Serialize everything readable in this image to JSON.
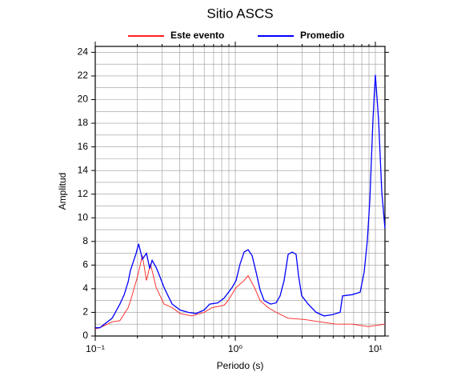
{
  "chart_data": {
    "type": "line",
    "title": "Sitio ASCS",
    "xlabel": "Periodo (s)",
    "ylabel": "Amplitud",
    "xscale": "log",
    "xlim": [
      0.1,
      11.71
    ],
    "ylim": [
      0,
      24.5
    ],
    "xticks": [
      {
        "value": 0.1,
        "label": "10⁻¹"
      },
      {
        "value": 1,
        "label": "10⁰"
      },
      {
        "value": 10,
        "label": "10¹"
      }
    ],
    "xminorticks": [
      0.2,
      0.3,
      0.4,
      0.5,
      0.6,
      0.7,
      0.8,
      0.9,
      2,
      3,
      4,
      5,
      6,
      7,
      8,
      9
    ],
    "yticks": [
      0,
      2,
      4,
      6,
      8,
      10,
      12,
      14,
      16,
      18,
      20,
      22,
      24
    ],
    "yminorticks": [
      1,
      3,
      5,
      7,
      9,
      11,
      13,
      15,
      17,
      19,
      21,
      23
    ],
    "grid": true,
    "legend": "top",
    "series": [
      {
        "name": "Este evento",
        "color": "#ff2020",
        "x": [
          0.1,
          0.108,
          0.132,
          0.15,
          0.172,
          0.183,
          0.201,
          0.217,
          0.232,
          0.248,
          0.272,
          0.31,
          0.354,
          0.404,
          0.491,
          0.599,
          0.683,
          0.832,
          0.888,
          1.013,
          1.156,
          1.234,
          1.371,
          1.504,
          1.715,
          1.955,
          2.384,
          3.099,
          4.034,
          5.248,
          6.827,
          8.892,
          11.71
        ],
        "values": [
          0.6,
          0.7,
          1.2,
          1.3,
          2.4,
          3.4,
          5.1,
          6.8,
          4.7,
          6.1,
          4.1,
          2.7,
          2.4,
          1.9,
          1.7,
          2.0,
          2.4,
          2.6,
          3.0,
          4.1,
          4.7,
          5.1,
          4.1,
          3.0,
          2.4,
          2.0,
          1.5,
          1.4,
          1.2,
          1.0,
          1.0,
          0.8,
          1.0
        ]
      },
      {
        "name": "Promedio",
        "color": "#0000ff",
        "x": [
          0.1,
          0.108,
          0.132,
          0.15,
          0.161,
          0.172,
          0.178,
          0.196,
          0.204,
          0.217,
          0.232,
          0.245,
          0.255,
          0.272,
          0.29,
          0.31,
          0.331,
          0.354,
          0.404,
          0.46,
          0.525,
          0.599,
          0.656,
          0.749,
          0.832,
          0.949,
          1.013,
          1.082,
          1.156,
          1.234,
          1.318,
          1.408,
          1.504,
          1.606,
          1.783,
          1.955,
          2.089,
          2.232,
          2.384,
          2.546,
          2.719,
          2.827,
          2.98,
          3.311,
          3.777,
          4.308,
          4.914,
          5.605,
          5.834,
          6.827,
          7.787,
          8.317,
          8.77,
          9.127,
          9.616,
          10.0,
          10.54,
          11.11,
          11.71
        ],
        "values": [
          0.7,
          0.7,
          1.5,
          2.7,
          3.5,
          4.6,
          5.5,
          7.0,
          7.8,
          6.5,
          7.0,
          5.7,
          6.4,
          5.8,
          5.0,
          4.1,
          3.4,
          2.7,
          2.2,
          2.0,
          1.9,
          2.2,
          2.7,
          2.8,
          3.2,
          4.1,
          4.7,
          6.1,
          7.1,
          7.3,
          6.8,
          5.4,
          3.9,
          3.0,
          2.7,
          2.8,
          3.4,
          4.7,
          6.9,
          7.1,
          6.9,
          5.1,
          3.4,
          2.7,
          2.0,
          1.7,
          1.8,
          2.0,
          3.4,
          3.5,
          3.7,
          5.4,
          8.1,
          11.5,
          18.3,
          22.1,
          18.3,
          12.2,
          9.1
        ]
      }
    ]
  }
}
